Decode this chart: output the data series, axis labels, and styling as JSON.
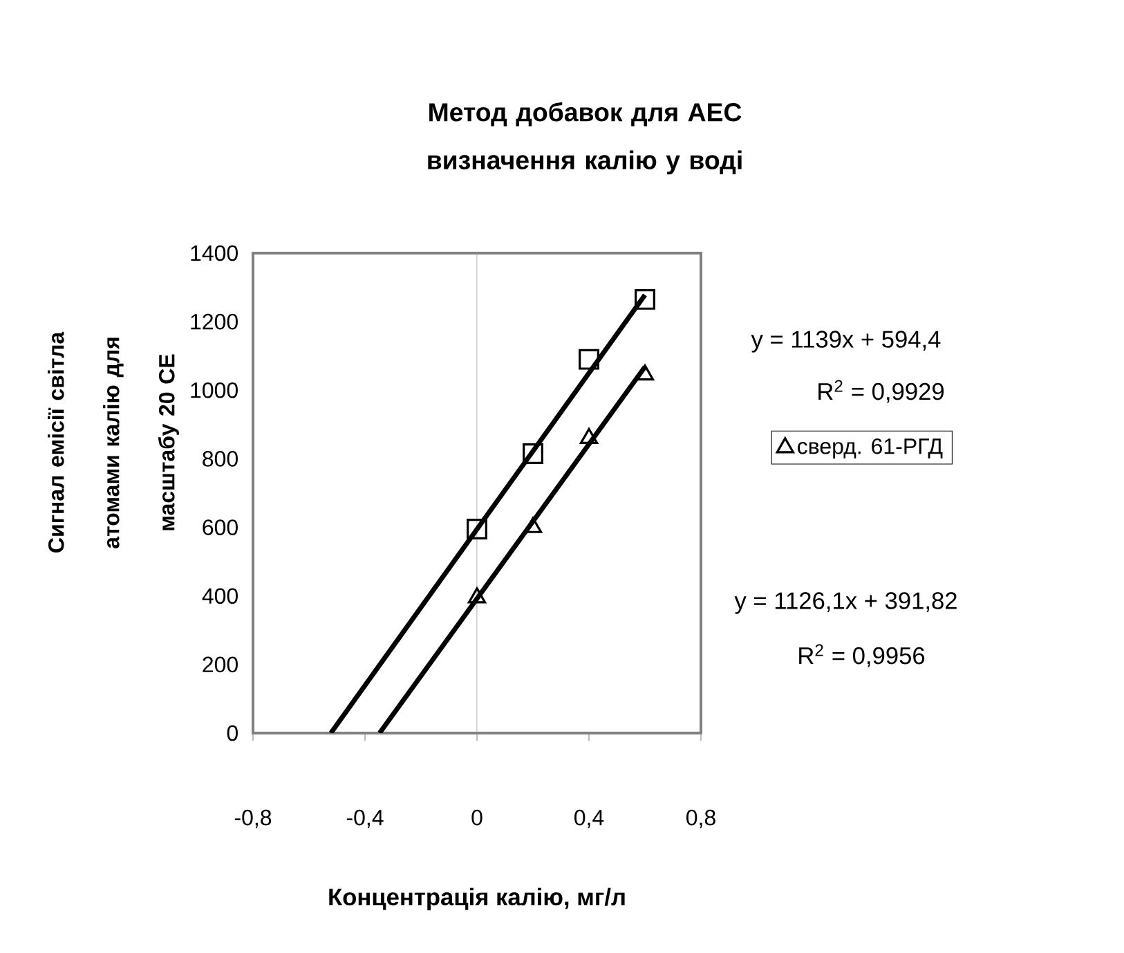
{
  "chart_data": {
    "type": "scatter",
    "title": "Метод добавок для АЕС визначення калію у воді",
    "xlabel": "Концентрація калію, мг/л",
    "ylabel": "Сигнал емісії світла атомами калію для масштабу 20 СЕ",
    "xlim": [
      -0.8,
      0.8
    ],
    "xticks": [
      {
        "value": -0.8,
        "label": "-0,8"
      },
      {
        "value": -0.4,
        "label": "-0,4"
      },
      0,
      {
        "value": 0.4,
        "label": "0,4"
      },
      {
        "value": 0.8,
        "label": "0,8"
      }
    ],
    "ylim": [
      0,
      1400
    ],
    "yticks": [
      0,
      200,
      400,
      600,
      800,
      1000,
      1200,
      1400
    ],
    "legend": "right",
    "grid": false,
    "ref_lines": [
      {
        "axis": "x",
        "value": 0,
        "color": "#a0a0a0"
      }
    ],
    "series": [
      {
        "marker": "square",
        "color": "#000000",
        "x": [
          0,
          0.2,
          0.4,
          0.6
        ],
        "values": [
          595,
          815,
          1090,
          1265
        ]
      },
      {
        "name": "сверд. 61-РГД",
        "marker": "triangle",
        "color": "#000000",
        "x": [
          0,
          0.2,
          0.4,
          0.6
        ],
        "values": [
          395,
          600,
          860,
          1045
        ]
      },
      {
        "type": "line",
        "marker": "none",
        "line_style": "solid",
        "color": "#000000",
        "x": [
          -0.522,
          0.6
        ],
        "values": [
          0,
          1278
        ]
      },
      {
        "type": "line",
        "marker": "none",
        "line_style": "solid",
        "color": "#000000",
        "x": [
          -0.348,
          0.6
        ],
        "values": [
          0,
          1068
        ]
      }
    ],
    "annotations": [
      "y = 1139x + 594,4",
      "R$^{2}$ = 0,9929",
      "y = 1126,1x + 391,82",
      "R$^{2}$ = 0,9956"
    ]
  }
}
